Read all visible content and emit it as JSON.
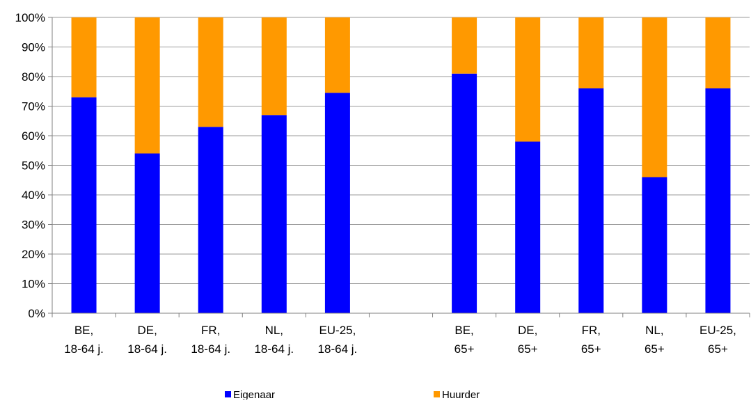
{
  "chart_data": {
    "type": "bar",
    "stacked": true,
    "categories": [
      [
        "BE,",
        "18-64 j."
      ],
      [
        "DE,",
        "18-64 j."
      ],
      [
        "FR,",
        "18-64 j."
      ],
      [
        "NL,",
        "18-64 j."
      ],
      [
        "EU-25,",
        "18-64 j."
      ],
      [
        "",
        ""
      ],
      [
        "BE,",
        "65+"
      ],
      [
        "DE,",
        "65+"
      ],
      [
        "FR,",
        "65+"
      ],
      [
        "NL,",
        "65+"
      ],
      [
        "EU-25,",
        "65+"
      ]
    ],
    "series": [
      {
        "name": "Eigenaar",
        "color": "#0000FF",
        "values": [
          73,
          54,
          63,
          67,
          74.5,
          null,
          81,
          58,
          76,
          46,
          76
        ]
      },
      {
        "name": "Huurder",
        "color": "#FF9900",
        "values": [
          27,
          46,
          37,
          33,
          25.5,
          null,
          19,
          42,
          24,
          54,
          24
        ]
      }
    ],
    "ylim": [
      0,
      100
    ],
    "yticks": [
      "0%",
      "10%",
      "20%",
      "30%",
      "40%",
      "50%",
      "60%",
      "70%",
      "80%",
      "90%",
      "100%"
    ],
    "grid": true,
    "legend_position": "bottom"
  }
}
